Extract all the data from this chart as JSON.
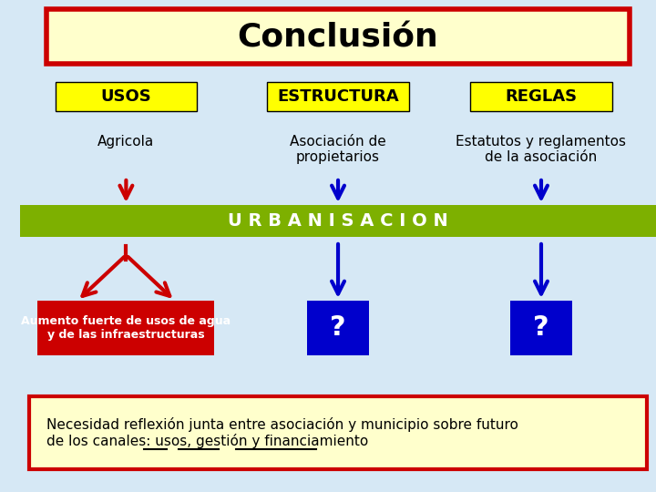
{
  "background_color": "#d6e8f5",
  "title": "Conclusión",
  "title_box_color": "#ffffcc",
  "title_border_color": "#cc0000",
  "col1_label": "USOS",
  "col2_label": "ESTRUCTURA",
  "col3_label": "REGLAS",
  "label_box_color": "#ffff00",
  "col1_text": "Agricola",
  "col2_text": "Asociación de\npropietarios",
  "col3_text": "Estatutos y reglamentos\nde la asociación",
  "urbanisacion_text": "U R B A N I S A C I O N",
  "urbanisacion_bg": "#7db000",
  "bottom_box1_text": "Aumento fuerte de usos de agua\ny de las infraestructuras",
  "bottom_box1_color": "#cc0000",
  "bottom_box2_text": "?",
  "bottom_box3_text": "?",
  "bottom_box23_color": "#0000cc",
  "footer_text": "Necesidad reflexión junta entre asociación y municipio sobre futuro\nde los canales: usos, gestión y financiamiento",
  "footer_box_color": "#ffffcc",
  "footer_border_color": "#cc0000",
  "red_arrow_color": "#cc0000",
  "blue_arrow_color": "#0000cc"
}
